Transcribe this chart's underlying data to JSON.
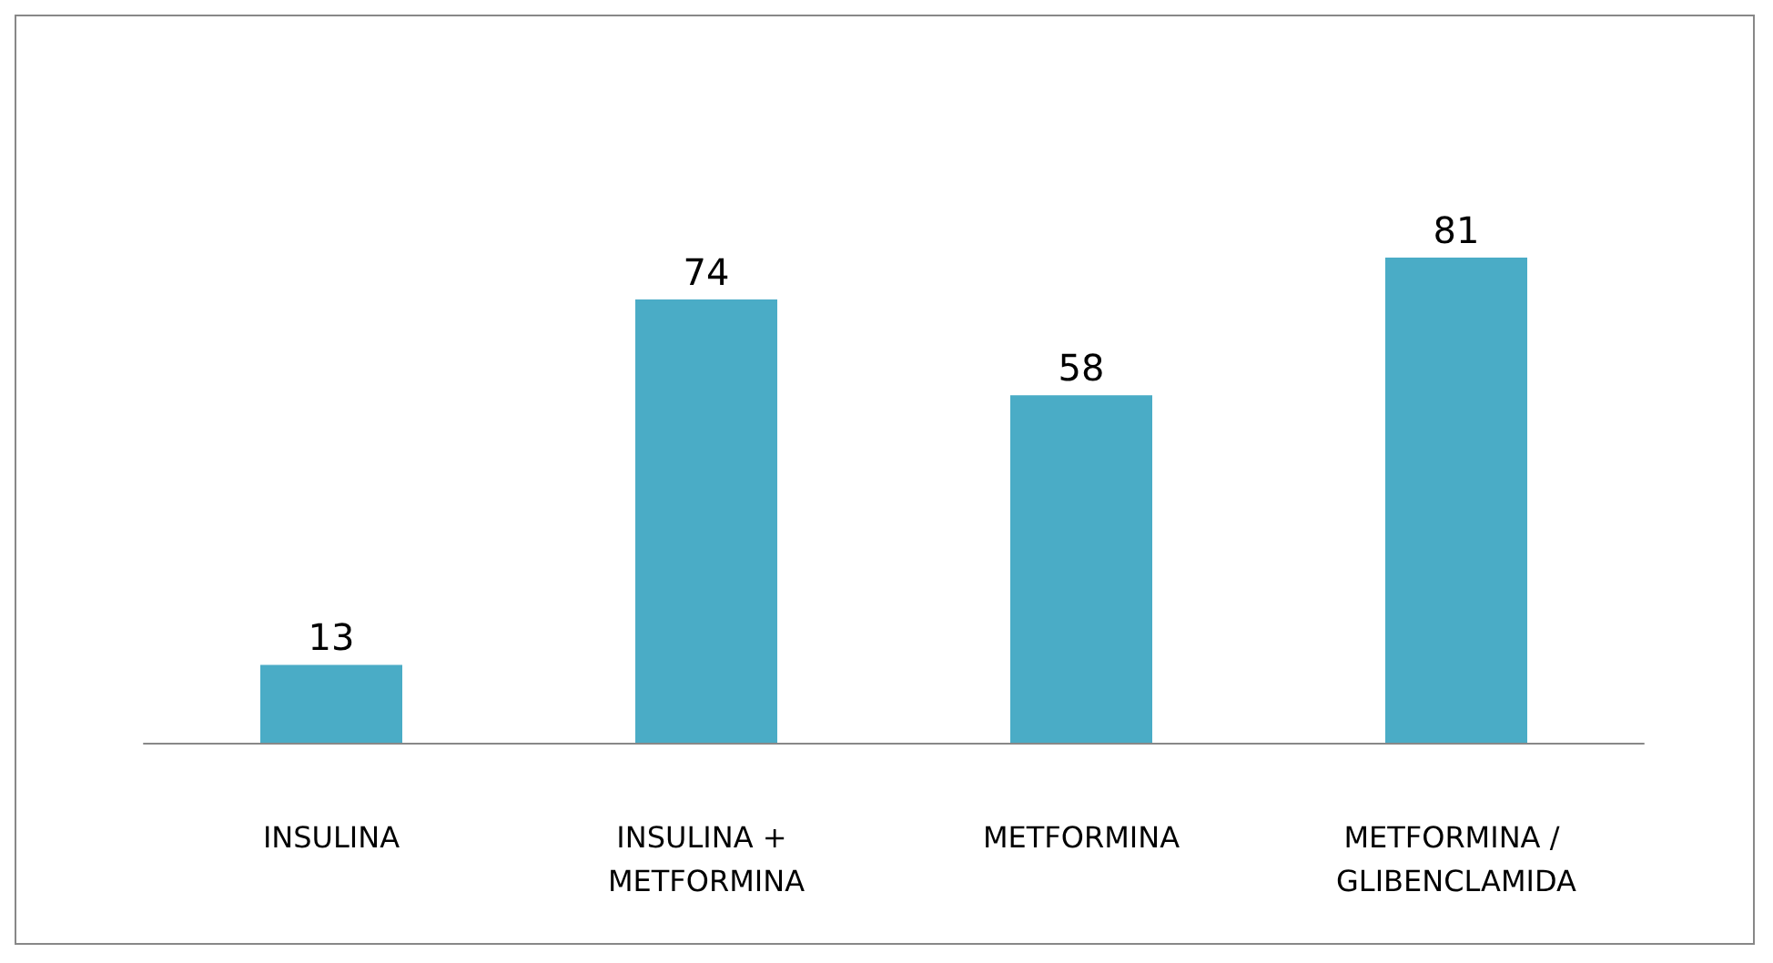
{
  "chart_data": {
    "type": "bar",
    "categories": [
      "INSULINA",
      "INSULINA + METFORMINA",
      "METFORMINA",
      "METFORMINA / GLIBENCLAMIDA"
    ],
    "values": [
      13,
      74,
      58,
      81
    ],
    "color": "#4aacc6",
    "data_labels": true,
    "grid": false
  }
}
